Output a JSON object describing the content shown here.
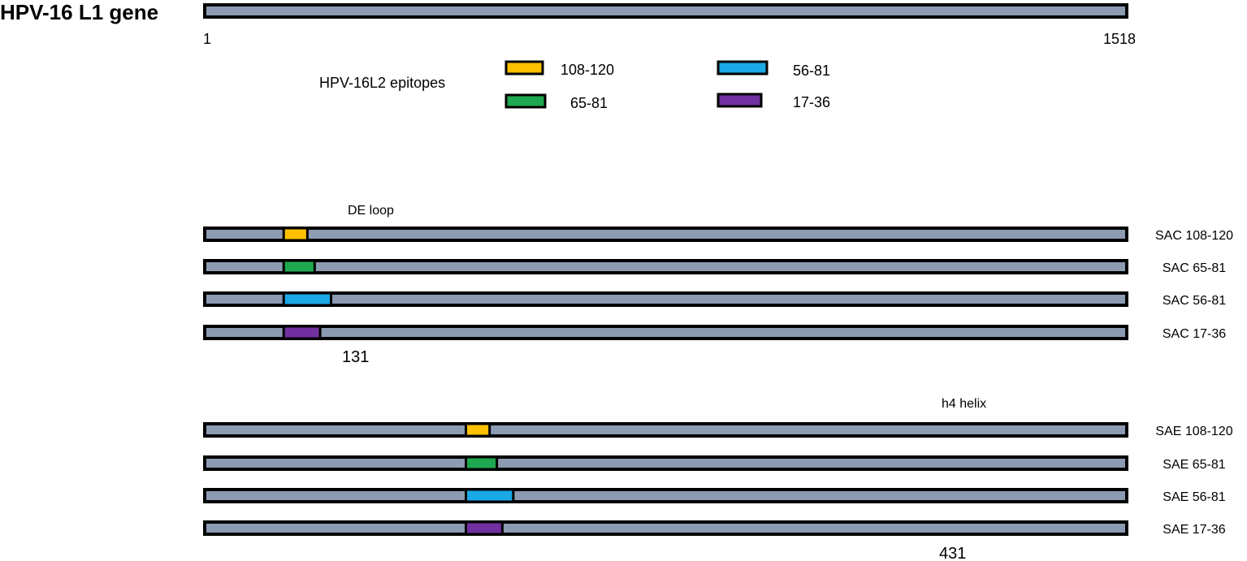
{
  "title": "HPV-16 L1 gene",
  "gene": {
    "start": 1,
    "end": 1518,
    "start_label": "1",
    "end_label": "1518",
    "color": "#8c9bb2"
  },
  "legend": {
    "title": "HPV-16L2 epitopes",
    "items": [
      {
        "label": "108-120",
        "color": "#ffc000"
      },
      {
        "label": "65-81",
        "color": "#1fa84f"
      },
      {
        "label": "56-81",
        "color": "#1aa8e6"
      },
      {
        "label": "17-36",
        "color": "#7030a0"
      }
    ]
  },
  "groups": [
    {
      "region_label": "DE loop",
      "position_label": "131",
      "insert_position": 131,
      "constructs": [
        {
          "name": "SAC 108-120",
          "epitope": "108-120",
          "color": "#ffc000",
          "insert_length": 39
        },
        {
          "name": "SAC 65-81",
          "epitope": "65-81",
          "color": "#1fa84f",
          "insert_length": 51
        },
        {
          "name": "SAC 56-81",
          "epitope": "56-81",
          "color": "#1aa8e6",
          "insert_length": 78
        },
        {
          "name": "SAC 17-36",
          "epitope": "17-36",
          "color": "#7030a0",
          "insert_length": 60
        }
      ]
    },
    {
      "region_label": "h4 helix",
      "position_label": "431",
      "insert_position": 431,
      "constructs": [
        {
          "name": "SAE 108-120",
          "epitope": "108-120",
          "color": "#ffc000",
          "insert_length": 39
        },
        {
          "name": "SAE 65-81",
          "epitope": "65-81",
          "color": "#1fa84f",
          "insert_length": 51
        },
        {
          "name": "SAE 56-81",
          "epitope": "56-81",
          "color": "#1aa8e6",
          "insert_length": 78
        },
        {
          "name": "SAE 17-36",
          "epitope": "17-36",
          "color": "#7030a0",
          "insert_length": 60
        }
      ]
    }
  ]
}
